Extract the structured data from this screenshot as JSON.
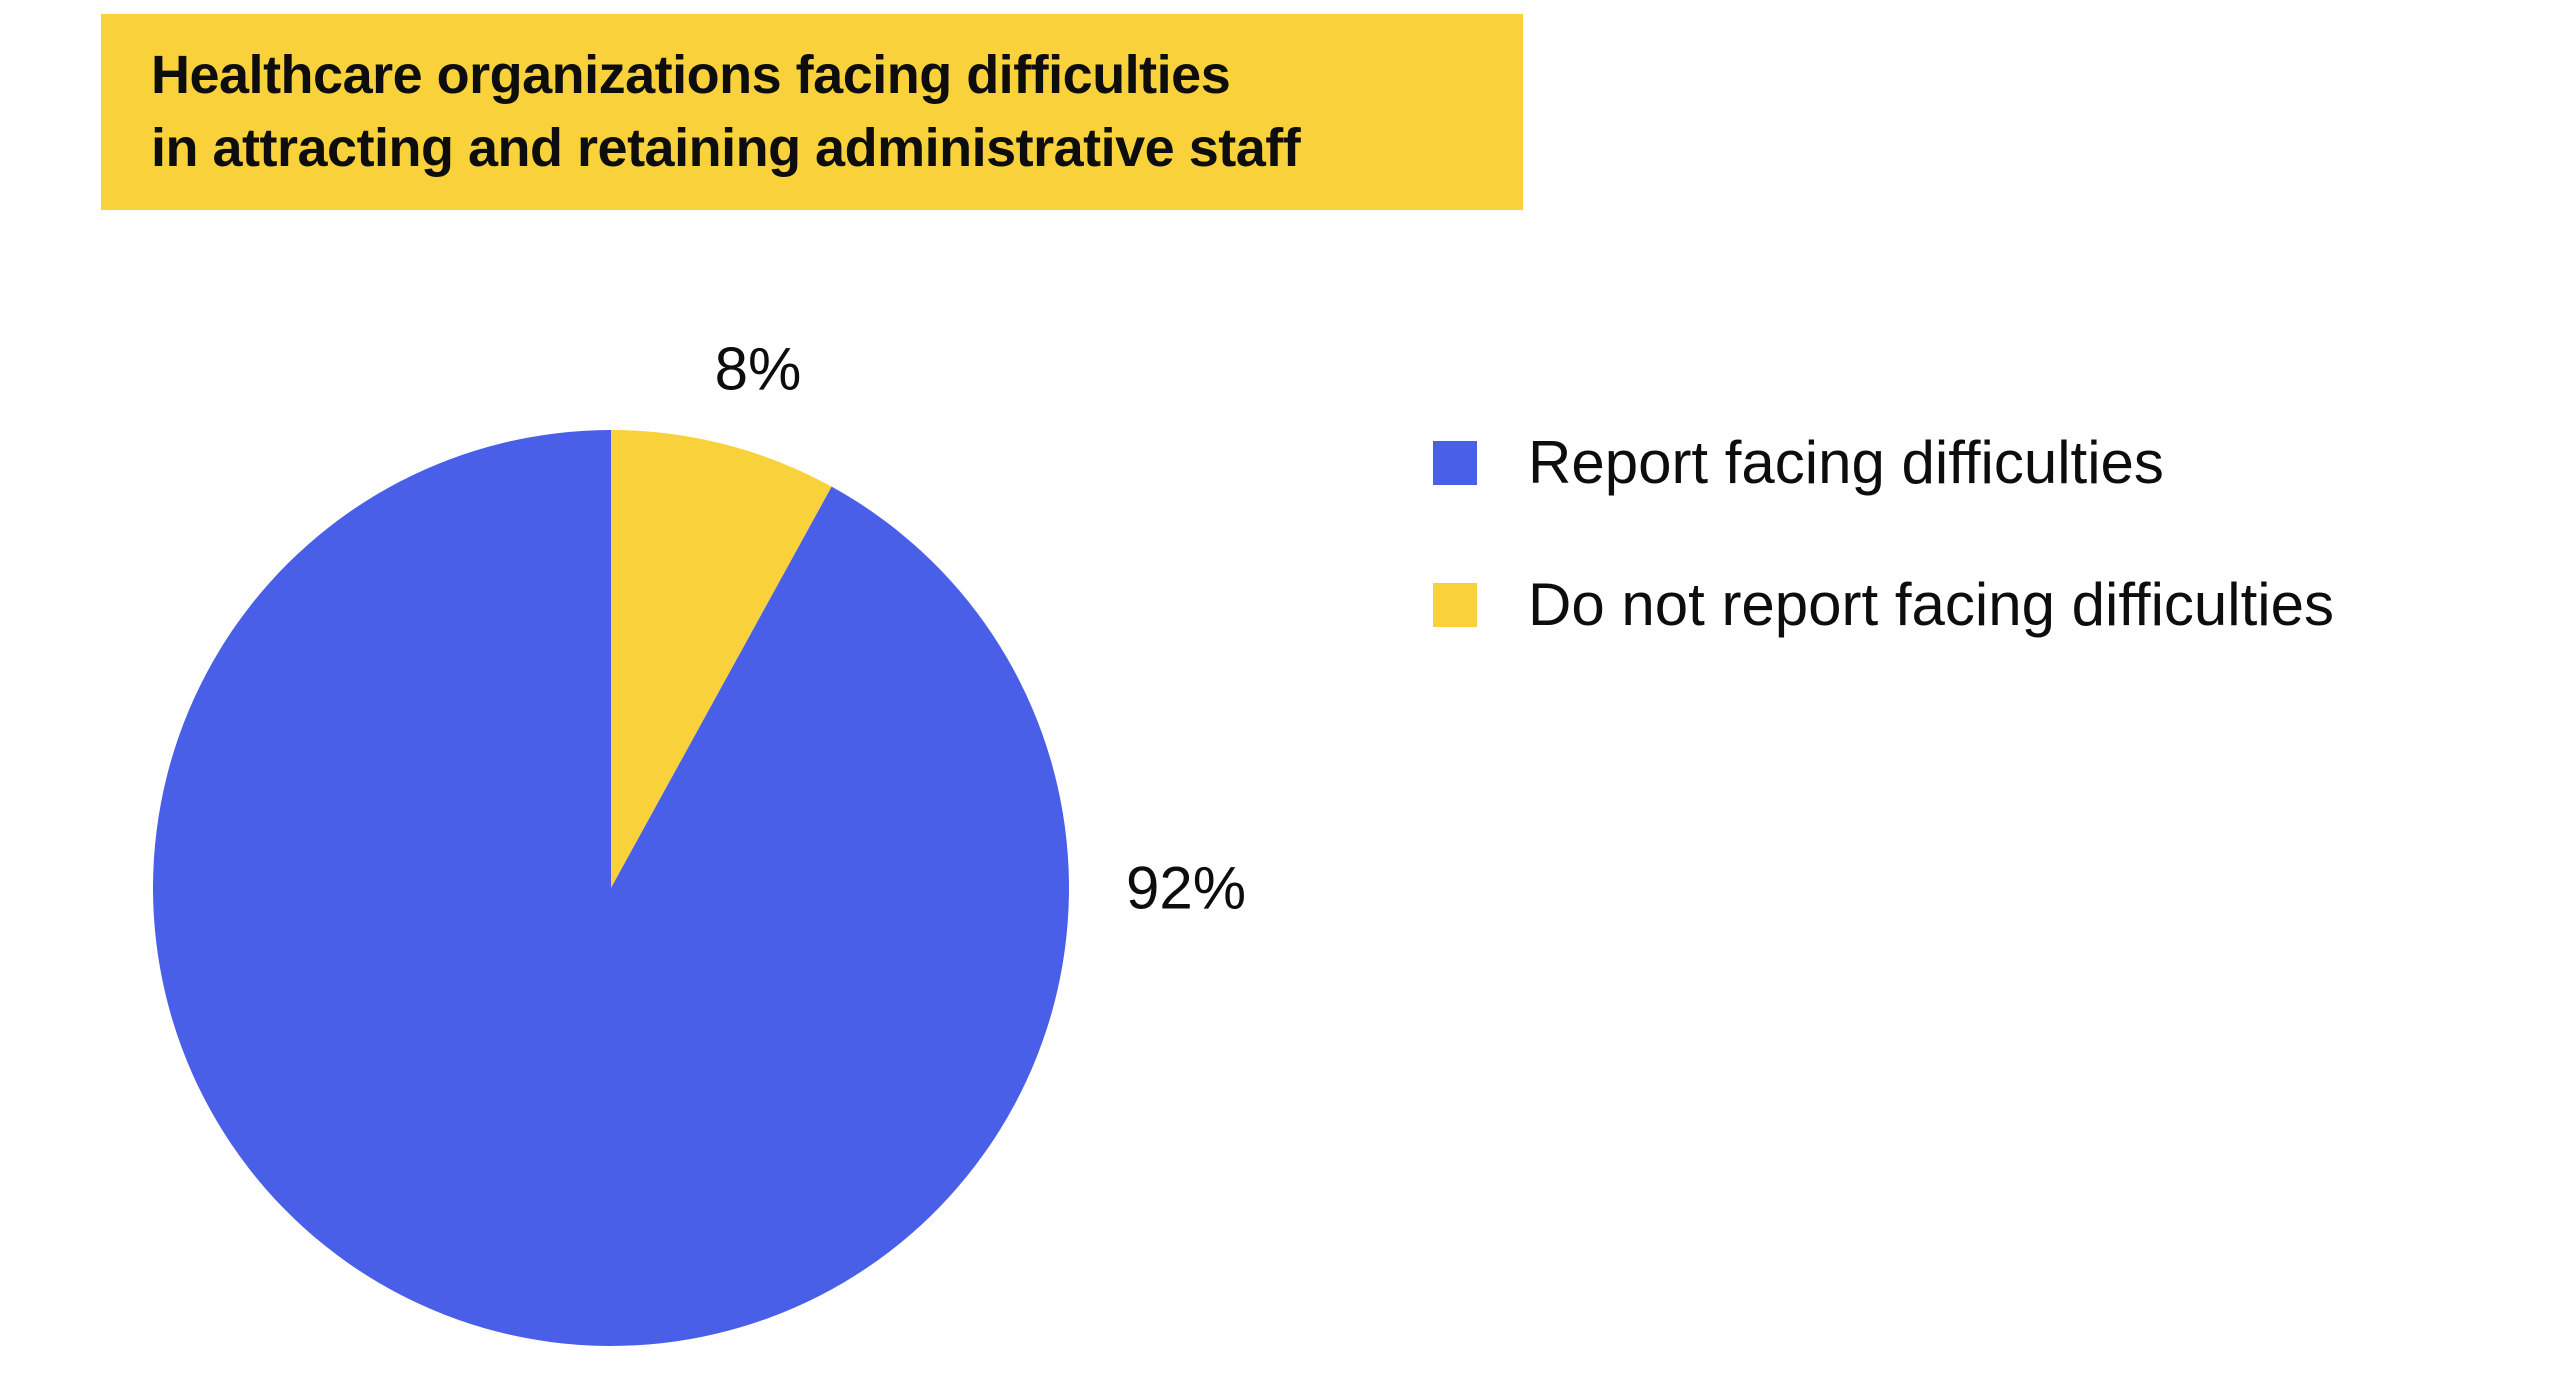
{
  "banner": {
    "title_line1": "Healthcare organizations facing difficulties",
    "title_line2": "in attracting and retaining administrative staff",
    "bg_color": "#F9D23B",
    "text_color": "#0D0D0D"
  },
  "chart_data": {
    "type": "pie",
    "title": "Healthcare organizations facing difficulties in attracting and retaining administrative staff",
    "start_angle_deg": -90,
    "direction": "clockwise",
    "legend_position": "right",
    "slices": [
      {
        "label": "Do not report facing difficulties",
        "value": 8,
        "display": "8%",
        "color": "#F9D23B"
      },
      {
        "label": "Report facing difficulties",
        "value": 92,
        "display": "92%",
        "color": "#4A5FE8"
      }
    ]
  },
  "legend": {
    "items": [
      {
        "label": "Report facing difficulties",
        "color": "#4A5FE8"
      },
      {
        "label": "Do not report facing difficulties",
        "color": "#F9D23B"
      }
    ]
  },
  "colors": {
    "background": "#FFFFFF",
    "accent_blue": "#4A5FE8",
    "accent_yellow": "#F9D23B",
    "text": "#0D0D0D"
  }
}
